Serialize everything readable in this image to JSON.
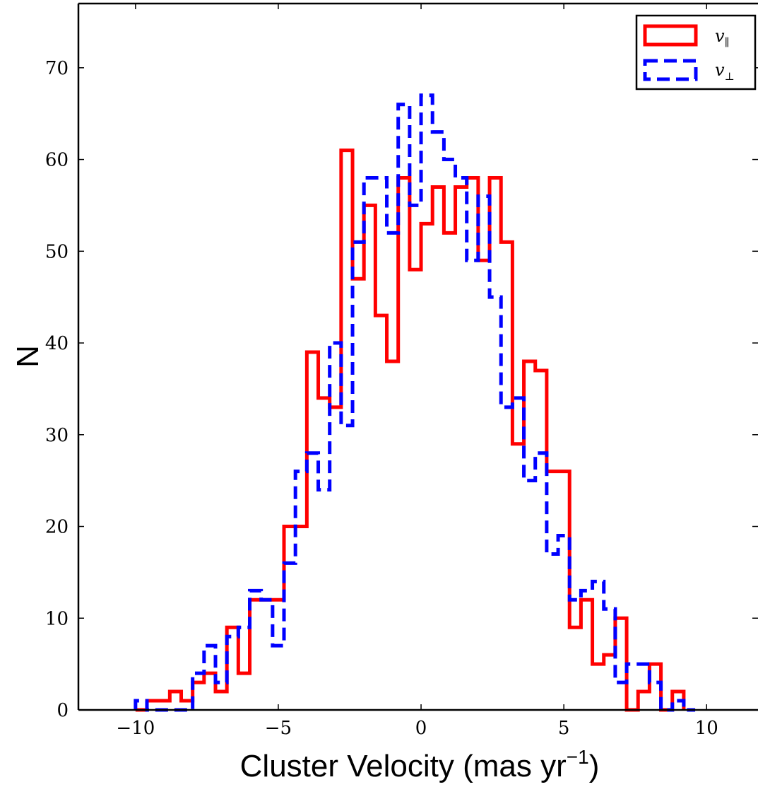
{
  "chart_data": {
    "type": "histogram",
    "xlabel": "Cluster Velocity (mas yr",
    "xlabel_sup": "−1",
    "xlabel_close": ")",
    "ylabel": "N",
    "xlim": [
      -12,
      11.8
    ],
    "ylim": [
      0,
      77
    ],
    "xticks": [
      -10,
      -5,
      0,
      5,
      10
    ],
    "xtick_labels": [
      "−10",
      "−5",
      "0",
      "5",
      "10"
    ],
    "yticks": [
      0,
      10,
      20,
      30,
      40,
      50,
      60,
      70
    ],
    "ytick_labels": [
      "0",
      "10",
      "20",
      "30",
      "40",
      "50",
      "60",
      "70"
    ],
    "legend_position": "top-right",
    "series": [
      {
        "name": "v∥",
        "legend_base": "v",
        "legend_sub": "∥",
        "color": "#ff0000",
        "linestyle": "solid",
        "edges": [
          -10.0,
          -9.6,
          -8.8,
          -8.4,
          -8.0,
          -7.6,
          -7.2,
          -6.8,
          -6.4,
          -6.0,
          -5.6,
          -4.8,
          -4.4,
          -4.0,
          -3.6,
          -3.2,
          -2.8,
          -2.4,
          -2.0,
          -1.6,
          -1.2,
          -0.8,
          -0.4,
          0.0,
          0.4,
          0.8,
          1.2,
          1.6,
          2.0,
          2.4,
          2.8,
          3.2,
          3.6,
          4.0,
          4.4,
          5.2,
          5.6,
          6.0,
          6.4,
          6.8,
          7.2,
          7.6,
          8.0,
          8.4,
          8.8,
          9.2
        ],
        "counts": [
          0,
          1,
          2,
          1,
          3,
          4,
          2,
          9,
          4,
          12,
          12,
          20,
          20,
          39,
          34,
          33,
          61,
          47,
          55,
          43,
          38,
          58,
          48,
          53,
          57,
          52,
          57,
          58,
          49,
          58,
          51,
          29,
          38,
          37,
          26,
          9,
          12,
          5,
          6,
          10,
          0,
          2,
          5,
          0,
          2
        ]
      },
      {
        "name": "v⊥",
        "legend_base": "v",
        "legend_sub": "⊥",
        "color": "#0000ff",
        "linestyle": "dashed",
        "edges": [
          -10.0,
          -9.6,
          -8.0,
          -7.6,
          -7.2,
          -6.8,
          -6.4,
          -6.0,
          -5.6,
          -5.2,
          -4.8,
          -4.4,
          -4.0,
          -3.6,
          -3.2,
          -2.8,
          -2.4,
          -2.0,
          -1.6,
          -1.2,
          -0.8,
          -0.4,
          0.0,
          0.4,
          0.8,
          1.2,
          1.6,
          2.0,
          2.4,
          2.8,
          3.2,
          3.6,
          4.0,
          4.4,
          4.8,
          5.2,
          5.6,
          6.0,
          6.4,
          6.8,
          7.2,
          7.6,
          8.0,
          8.4,
          8.8,
          9.2,
          9.6
        ],
        "counts": [
          1,
          0,
          4,
          7,
          3,
          8,
          9,
          13,
          12,
          7,
          16,
          26,
          28,
          24,
          40,
          31,
          51,
          58,
          58,
          52,
          66,
          55,
          67,
          63,
          60,
          58,
          49,
          56,
          45,
          33,
          34,
          25,
          28,
          17,
          19,
          12,
          13,
          14,
          11,
          3,
          5,
          5,
          3,
          0,
          1,
          0
        ]
      }
    ]
  }
}
